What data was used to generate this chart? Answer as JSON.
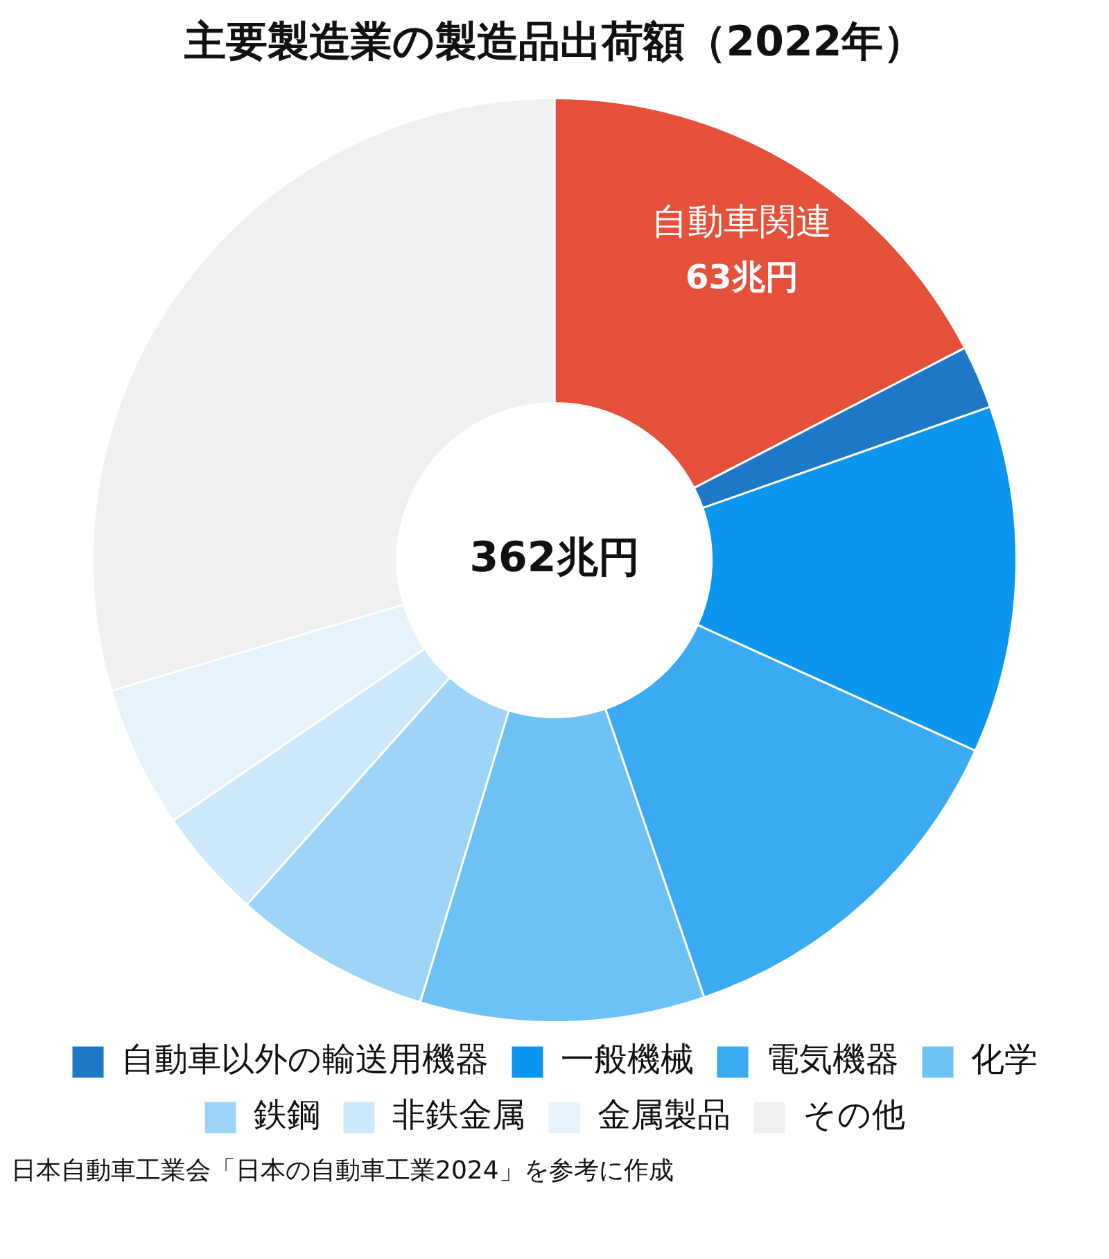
{
  "chart_data": {
    "type": "donut",
    "title": "主要製造業の製造品出荷額（2022年）",
    "categories": [
      "自動車関連",
      "自動車以外の輸送用機器",
      "一般機械",
      "電気機器",
      "化学",
      "鉄鋼",
      "非鉄金属",
      "金属製品",
      "その他"
    ],
    "values": [
      63,
      8,
      44,
      47,
      36,
      25,
      14,
      18,
      107
    ],
    "colors": [
      "#e4503a",
      "#1f77c8",
      "#0a96ee",
      "#3aabf2",
      "#6cc1f5",
      "#9dd4f8",
      "#cde8fa",
      "#e6f3fc",
      "#f0f0f0"
    ],
    "value_labels": [
      "63兆円",
      null,
      null,
      null,
      null,
      null,
      null,
      null,
      null
    ],
    "legend": "bottom",
    "annotations": [
      "362兆円",
      "日本自動車工業会「日本の自動車工業2024」を参考に作成"
    ]
  }
}
